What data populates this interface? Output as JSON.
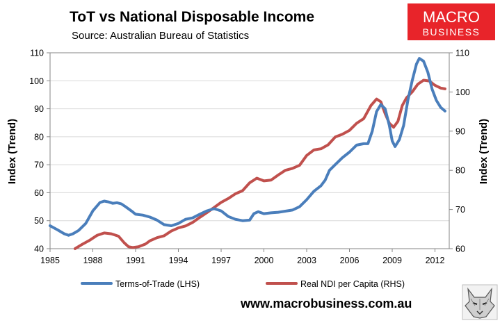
{
  "chart_data": {
    "type": "line",
    "title": "ToT vs National Disposable Income",
    "subtitle": "Source: Australian Bureau of Statistics",
    "ylabel_left": "Index (Trend)",
    "ylabel_right": "Index (Trend)",
    "xlim": [
      1985,
      2013
    ],
    "ylim_left": [
      40,
      110
    ],
    "ylim_right": [
      60,
      110
    ],
    "x_ticks": [
      "1985",
      "1988",
      "1991",
      "1994",
      "1997",
      "2000",
      "2003",
      "2006",
      "2009",
      "2012"
    ],
    "y_ticks_left": [
      "40",
      "50",
      "60",
      "70",
      "80",
      "90",
      "100",
      "110"
    ],
    "y_ticks_right": [
      "60",
      "70",
      "80",
      "90",
      "100",
      "110"
    ],
    "grid": "horizontal",
    "legend_position": "bottom",
    "series": [
      {
        "name": "Terms-of-Trade (LHS)",
        "axis": "left",
        "color": "#4a7ebb",
        "points": [
          [
            1985.0,
            48.2
          ],
          [
            1985.5,
            46.8
          ],
          [
            1986.0,
            45.3
          ],
          [
            1986.3,
            44.8
          ],
          [
            1986.6,
            45.3
          ],
          [
            1987.0,
            46.5
          ],
          [
            1987.5,
            49.0
          ],
          [
            1988.0,
            53.5
          ],
          [
            1988.5,
            56.5
          ],
          [
            1988.8,
            57.0
          ],
          [
            1989.1,
            56.7
          ],
          [
            1989.4,
            56.2
          ],
          [
            1989.7,
            56.4
          ],
          [
            1990.0,
            56.0
          ],
          [
            1990.3,
            55.0
          ],
          [
            1990.7,
            53.5
          ],
          [
            1991.0,
            52.3
          ],
          [
            1991.5,
            52.0
          ],
          [
            1992.0,
            51.3
          ],
          [
            1992.5,
            50.2
          ],
          [
            1993.0,
            48.6
          ],
          [
            1993.5,
            48.2
          ],
          [
            1994.0,
            49.0
          ],
          [
            1994.5,
            50.5
          ],
          [
            1995.0,
            51.0
          ],
          [
            1995.5,
            52.3
          ],
          [
            1996.0,
            53.5
          ],
          [
            1996.5,
            54.3
          ],
          [
            1997.0,
            53.5
          ],
          [
            1997.5,
            51.5
          ],
          [
            1998.0,
            50.5
          ],
          [
            1998.5,
            50.0
          ],
          [
            1999.0,
            50.2
          ],
          [
            1999.3,
            52.5
          ],
          [
            1999.6,
            53.2
          ],
          [
            2000.0,
            52.5
          ],
          [
            2000.5,
            52.8
          ],
          [
            2001.0,
            53.0
          ],
          [
            2001.5,
            53.4
          ],
          [
            2002.0,
            53.8
          ],
          [
            2002.5,
            55.0
          ],
          [
            2003.0,
            57.5
          ],
          [
            2003.5,
            60.5
          ],
          [
            2004.0,
            62.5
          ],
          [
            2004.3,
            64.5
          ],
          [
            2004.6,
            68.0
          ],
          [
            2005.0,
            70.0
          ],
          [
            2005.5,
            72.5
          ],
          [
            2006.0,
            74.5
          ],
          [
            2006.5,
            77.0
          ],
          [
            2007.0,
            77.5
          ],
          [
            2007.3,
            77.5
          ],
          [
            2007.6,
            82.0
          ],
          [
            2007.9,
            89.0
          ],
          [
            2008.2,
            91.5
          ],
          [
            2008.5,
            90.0
          ],
          [
            2008.8,
            84.0
          ],
          [
            2009.0,
            78.5
          ],
          [
            2009.2,
            76.5
          ],
          [
            2009.5,
            79.0
          ],
          [
            2009.8,
            84.0
          ],
          [
            2010.1,
            93.0
          ],
          [
            2010.4,
            100.0
          ],
          [
            2010.7,
            106.0
          ],
          [
            2010.9,
            108.0
          ],
          [
            2011.2,
            107.0
          ],
          [
            2011.5,
            103.0
          ],
          [
            2011.8,
            97.0
          ],
          [
            2012.1,
            93.0
          ],
          [
            2012.4,
            90.5
          ],
          [
            2012.7,
            89.2
          ]
        ]
      },
      {
        "name": "Real NDI per Capita (RHS)",
        "axis": "right",
        "color": "#c0504d",
        "points": [
          [
            1986.75,
            60.0
          ],
          [
            1987.2,
            61.0
          ],
          [
            1987.8,
            62.2
          ],
          [
            1988.3,
            63.4
          ],
          [
            1988.8,
            64.0
          ],
          [
            1989.3,
            63.8
          ],
          [
            1989.8,
            63.2
          ],
          [
            1990.2,
            61.5
          ],
          [
            1990.5,
            60.5
          ],
          [
            1990.8,
            60.3
          ],
          [
            1991.2,
            60.5
          ],
          [
            1991.7,
            61.2
          ],
          [
            1992.0,
            62.0
          ],
          [
            1992.5,
            62.8
          ],
          [
            1993.0,
            63.3
          ],
          [
            1993.5,
            64.5
          ],
          [
            1994.0,
            65.3
          ],
          [
            1994.5,
            65.8
          ],
          [
            1995.0,
            66.7
          ],
          [
            1995.5,
            68.0
          ],
          [
            1996.0,
            69.2
          ],
          [
            1996.5,
            70.5
          ],
          [
            1997.0,
            71.8
          ],
          [
            1997.5,
            72.8
          ],
          [
            1998.0,
            74.0
          ],
          [
            1998.5,
            74.8
          ],
          [
            1999.0,
            76.8
          ],
          [
            1999.5,
            78.0
          ],
          [
            2000.0,
            77.3
          ],
          [
            2000.5,
            77.5
          ],
          [
            2001.0,
            78.8
          ],
          [
            2001.5,
            80.0
          ],
          [
            2002.0,
            80.5
          ],
          [
            2002.5,
            81.3
          ],
          [
            2003.0,
            83.8
          ],
          [
            2003.5,
            85.2
          ],
          [
            2004.0,
            85.5
          ],
          [
            2004.5,
            86.5
          ],
          [
            2005.0,
            88.5
          ],
          [
            2005.5,
            89.2
          ],
          [
            2006.0,
            90.2
          ],
          [
            2006.5,
            92.0
          ],
          [
            2007.0,
            93.2
          ],
          [
            2007.5,
            96.5
          ],
          [
            2007.9,
            98.2
          ],
          [
            2008.2,
            97.5
          ],
          [
            2008.5,
            94.5
          ],
          [
            2008.8,
            92.0
          ],
          [
            2009.1,
            91.0
          ],
          [
            2009.4,
            92.5
          ],
          [
            2009.7,
            96.5
          ],
          [
            2010.0,
            98.5
          ],
          [
            2010.4,
            100.0
          ],
          [
            2010.8,
            102.0
          ],
          [
            2011.2,
            103.0
          ],
          [
            2011.6,
            102.8
          ],
          [
            2012.0,
            101.7
          ],
          [
            2012.4,
            101.0
          ],
          [
            2012.7,
            100.8
          ]
        ]
      }
    ]
  },
  "logo": {
    "line1": "MACRO",
    "line2": "BUSINESS",
    "color": "#e8242a"
  },
  "footer": {
    "url": "www.macrobusiness.com.au"
  },
  "mascot": {
    "name": "wolf-logo"
  }
}
